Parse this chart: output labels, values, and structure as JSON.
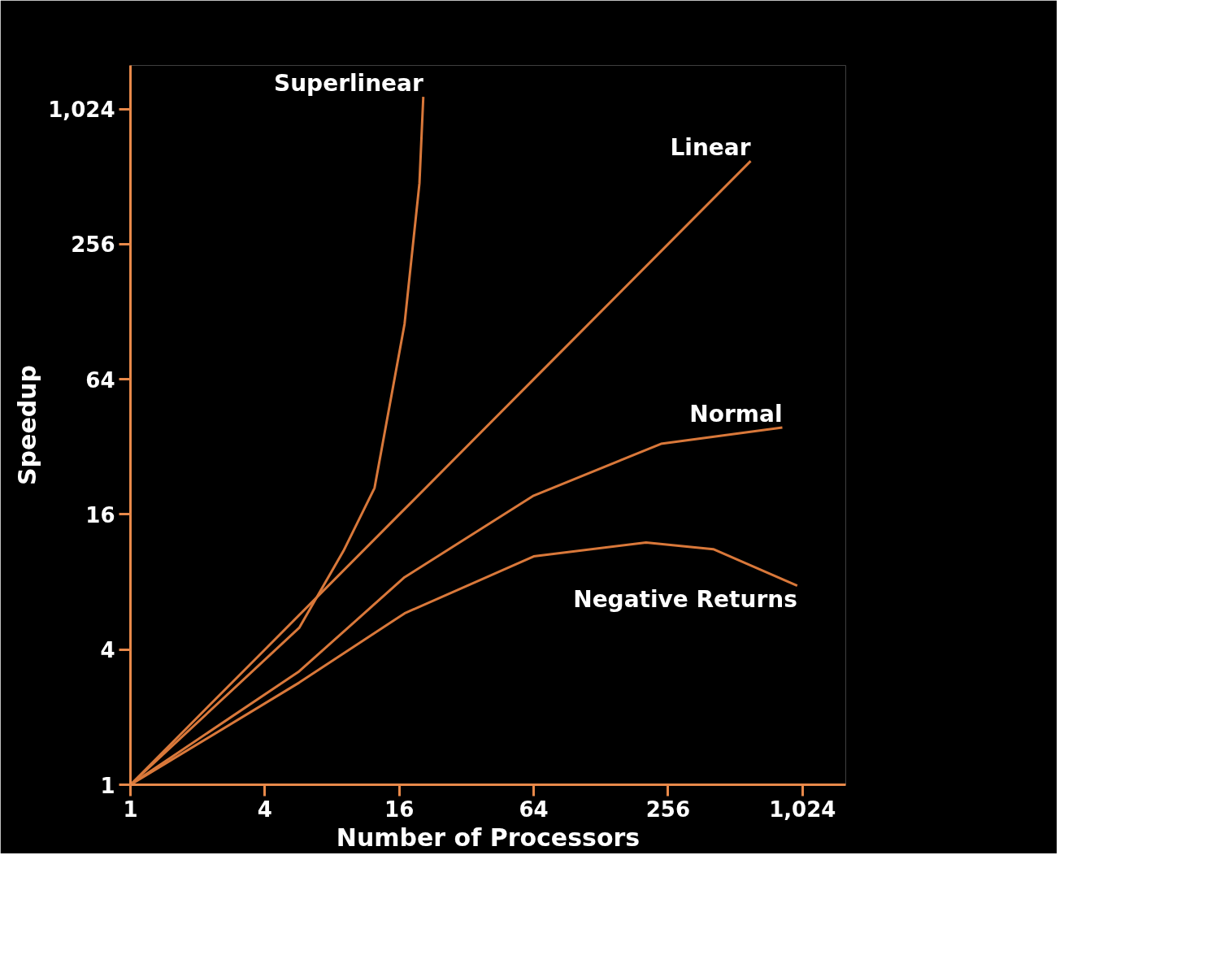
{
  "chart_data": {
    "type": "line",
    "xlabel": "Number of Processors",
    "ylabel": "Speedup",
    "log": "xy",
    "xlim": [
      1,
      1600
    ],
    "ylim": [
      1,
      1600
    ],
    "xticks": [
      1,
      4,
      16,
      64,
      256,
      {
        "value": 1024,
        "label": "1,024"
      }
    ],
    "yticks": [
      1,
      4,
      16,
      64,
      256,
      {
        "value": 1024,
        "label": "1,024"
      }
    ],
    "grid": false,
    "marker": "none",
    "line_style": "solid",
    "series": [
      {
        "name": "Superlinear",
        "color": "#d9783a",
        "x": [
          1,
          5.7,
          9,
          12.4,
          16.9,
          19.7,
          20.5
        ],
        "values": [
          1,
          5,
          11,
          21,
          113,
          477,
          1160
        ]
      },
      {
        "name": "Linear",
        "color": "#d9783a",
        "x": [
          1,
          4,
          16,
          64,
          256,
          600
        ],
        "values": [
          1,
          4,
          16,
          64,
          256,
          600
        ]
      },
      {
        "name": "Normal",
        "color": "#d9783a",
        "x": [
          1,
          5.7,
          16.9,
          64,
          238,
          832
        ],
        "values": [
          1,
          3.2,
          8.4,
          19.4,
          33,
          39
        ]
      },
      {
        "name": "Negative Returns",
        "color": "#d9783a",
        "x": [
          1,
          5.7,
          16.9,
          64,
          204,
          408,
          970
        ],
        "values": [
          1,
          2.85,
          5.8,
          10.4,
          12,
          11.2,
          7.7
        ]
      }
    ]
  }
}
